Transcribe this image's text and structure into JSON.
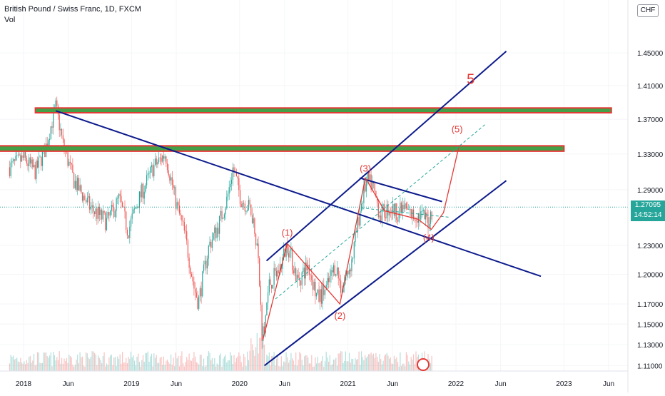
{
  "legend": {
    "symbol_title": "British Pound / Swiss Franc, 1D, FXCM",
    "volume_label": "Vol"
  },
  "currency_badge": "CHF",
  "last_price": {
    "value": "1.27095",
    "countdown": "14:52:14",
    "color": "#26a69a"
  },
  "colors": {
    "up": "#26a69a",
    "down": "#ef5350",
    "trendline": "#0d1b8c",
    "wave": "#e53935",
    "resistance_fill": "#43a047",
    "resistance_border": "#e53935",
    "dashed": "#26a69a"
  },
  "chart_data": {
    "type": "candlestick",
    "title": "British Pound / Swiss Franc, 1D, FXCM",
    "y_ticks": [
      1.11,
      1.13,
      1.15,
      1.17,
      1.2,
      1.23,
      1.29,
      1.33,
      1.37,
      1.41,
      1.45
    ],
    "y_tick_labels": [
      "1.11000",
      "1.13000",
      "1.15000",
      "1.17000",
      "1.20000",
      "1.23000",
      "1.29000",
      "1.33000",
      "1.37000",
      "1.41000",
      "1.45000"
    ],
    "x_ticks": [
      {
        "label": "2018",
        "date": "2018-01-01"
      },
      {
        "label": "Jun",
        "date": "2018-06-01"
      },
      {
        "label": "2019",
        "date": "2019-01-01"
      },
      {
        "label": "Jun",
        "date": "2019-06-01"
      },
      {
        "label": "2020",
        "date": "2020-01-01"
      },
      {
        "label": "Jun",
        "date": "2020-06-01"
      },
      {
        "label": "2021",
        "date": "2021-01-01"
      },
      {
        "label": "Jun",
        "date": "2021-06-01"
      },
      {
        "label": "2022",
        "date": "2022-01-01"
      },
      {
        "label": "Jun",
        "date": "2022-06-01"
      },
      {
        "label": "2023",
        "date": "2023-01-01"
      },
      {
        "label": "Jun",
        "date": "2023-06-01"
      }
    ],
    "price_path": [
      [
        "2017-11-15",
        1.315
      ],
      [
        "2018-01-01",
        1.325
      ],
      [
        "2018-02-10",
        1.31
      ],
      [
        "2018-03-15",
        1.335
      ],
      [
        "2018-04-20",
        1.385
      ],
      [
        "2018-05-15",
        1.34
      ],
      [
        "2018-06-20",
        1.3
      ],
      [
        "2018-08-15",
        1.27
      ],
      [
        "2018-10-10",
        1.255
      ],
      [
        "2018-11-20",
        1.28
      ],
      [
        "2018-12-20",
        1.245
      ],
      [
        "2019-01-20",
        1.275
      ],
      [
        "2019-03-15",
        1.315
      ],
      [
        "2019-04-25",
        1.33
      ],
      [
        "2019-06-01",
        1.275
      ],
      [
        "2019-07-01",
        1.24
      ],
      [
        "2019-08-01",
        1.185
      ],
      [
        "2019-08-15",
        1.172
      ],
      [
        "2019-09-20",
        1.23
      ],
      [
        "2019-10-20",
        1.25
      ],
      [
        "2019-11-20",
        1.28
      ],
      [
        "2019-12-10",
        1.315
      ],
      [
        "2020-01-05",
        1.28
      ],
      [
        "2020-02-10",
        1.268
      ],
      [
        "2020-03-01",
        1.23
      ],
      [
        "2020-03-18",
        1.135
      ],
      [
        "2020-04-10",
        1.19
      ],
      [
        "2020-05-15",
        1.205
      ],
      [
        "2020-06-10",
        1.232
      ],
      [
        "2020-07-15",
        1.193
      ],
      [
        "2020-08-20",
        1.21
      ],
      [
        "2020-09-20",
        1.175
      ],
      [
        "2020-10-20",
        1.185
      ],
      [
        "2020-11-20",
        1.21
      ],
      [
        "2020-12-10",
        1.185
      ],
      [
        "2021-01-15",
        1.215
      ],
      [
        "2021-02-15",
        1.275
      ],
      [
        "2021-03-05",
        1.3
      ],
      [
        "2021-03-25",
        1.295
      ],
      [
        "2021-04-20",
        1.262
      ],
      [
        "2021-05-20",
        1.27
      ],
      [
        "2021-06-20",
        1.265
      ],
      [
        "2021-07-10",
        1.27
      ],
      [
        "2021-08-05",
        1.262
      ],
      [
        "2021-09-05",
        1.262
      ],
      [
        "2021-09-30",
        1.256
      ],
      [
        "2021-10-15",
        1.271
      ]
    ],
    "horizontal_zones": [
      {
        "y_low": 1.3785,
        "y_high": 1.3825,
        "x_start": "2018-02-10",
        "x_end": "2023-06-10"
      },
      {
        "y_low": 1.334,
        "y_high": 1.3385,
        "x_start": "2017-10-01",
        "x_end": "2023-01-01"
      }
    ],
    "trendlines": [
      {
        "from": [
          "2018-04-20",
          1.38
        ],
        "to": [
          "2022-10-15",
          1.198
        ]
      },
      {
        "from": [
          "2020-03-25",
          1.11
        ],
        "to": [
          "2022-06-20",
          1.3
        ]
      },
      {
        "from": [
          "2020-04-01",
          1.214
        ],
        "to": [
          "2022-06-20",
          1.452
        ]
      },
      {
        "from": [
          "2021-02-10",
          1.303
        ],
        "to": [
          "2021-11-15",
          1.277
        ]
      }
    ],
    "wave_path": [
      [
        "2020-03-20",
        1.135
      ],
      [
        "2020-06-10",
        1.232
      ],
      [
        "2020-12-05",
        1.17
      ],
      [
        "2021-03-01",
        1.303
      ],
      [
        "2021-05-05",
        1.267
      ],
      [
        "2021-08-25",
        1.258
      ],
      [
        "2021-10-10",
        1.247
      ],
      [
        "2021-11-20",
        1.265
      ],
      [
        "2022-01-10",
        1.337
      ]
    ],
    "dashed_lines": [
      {
        "from": [
          "2020-05-01",
          1.175
        ],
        "to": [
          "2022-04-10",
          1.364
        ]
      },
      {
        "from": [
          "2021-02-15",
          1.27
        ],
        "to": [
          "2021-12-10",
          1.26
        ]
      }
    ],
    "annotations": [
      {
        "text": "(1)",
        "x": "2020-06-10",
        "y": 1.24
      },
      {
        "text": "(2)",
        "x": "2020-12-05",
        "y": 1.155
      },
      {
        "text": "(3)",
        "x": "2021-03-01",
        "y": 1.31
      },
      {
        "text": "(4)",
        "x": "2021-10-01",
        "y": 1.235
      },
      {
        "text": "(5)",
        "x": "2022-01-05",
        "y": 1.355
      },
      {
        "text": "5",
        "x": "2022-02-20",
        "y": 1.412
      }
    ],
    "last_price_line": 1.27095
  }
}
